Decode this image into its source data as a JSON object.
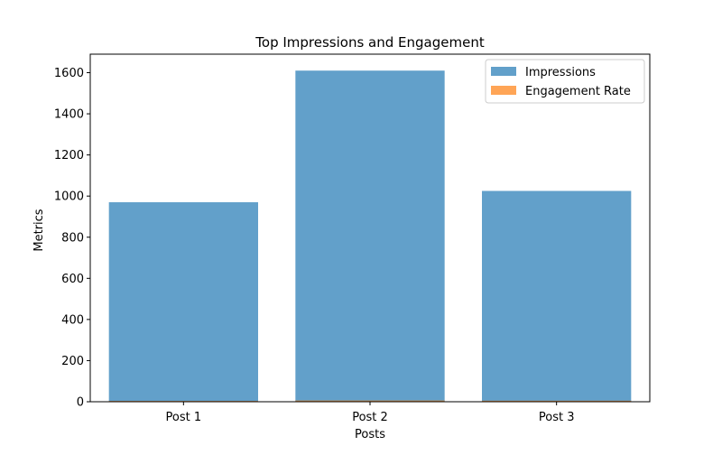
{
  "chart_data": {
    "type": "bar",
    "title": "Top Impressions and Engagement",
    "xlabel": "Posts",
    "ylabel": "Metrics",
    "categories": [
      "Post 1",
      "Post 2",
      "Post 3"
    ],
    "series": [
      {
        "name": "Impressions",
        "values": [
          970,
          1610,
          1025
        ],
        "color": "#1f77b4"
      },
      {
        "name": "Engagement Rate",
        "values": [
          4,
          6,
          5
        ],
        "color": "#ff7f0e"
      }
    ],
    "ylim": [
      0,
      1690
    ],
    "yticks": [
      0,
      200,
      400,
      600,
      800,
      1000,
      1200,
      1400,
      1600
    ],
    "legend_position": "top-right",
    "grid": false
  }
}
